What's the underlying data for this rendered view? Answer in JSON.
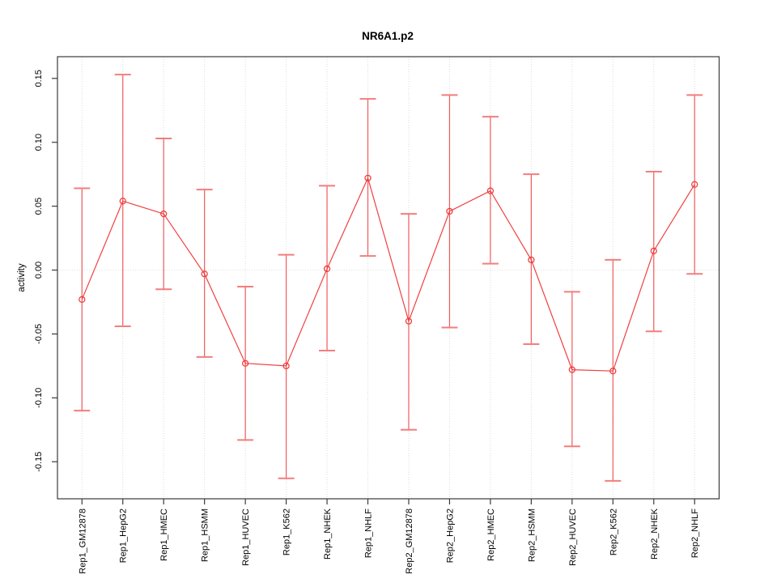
{
  "figure": {
    "background": "#ffffff"
  },
  "chart_data": {
    "type": "scatter",
    "title": "NR6A1.p2",
    "ylabel": "activity",
    "xlabel": "",
    "marker": "open-circle",
    "legend": "none",
    "grid": "vertical dotted line per category; dotted horizontal line at y=0",
    "categories": [
      "Rep1_GM12878",
      "Rep1_HepG2",
      "Rep1_HMEC",
      "Rep1_HSMM",
      "Rep1_HUVEC",
      "Rep1_K562",
      "Rep1_NHEK",
      "Rep1_NHLF",
      "Rep2_GM12878",
      "Rep2_HepG2",
      "Rep2_HMEC",
      "Rep2_HSMM",
      "Rep2_HUVEC",
      "Rep2_K562",
      "Rep2_NHEK",
      "Rep2_NHLF"
    ],
    "series": [
      {
        "name": "activity",
        "values": [
          -0.023,
          0.054,
          0.044,
          -0.003,
          -0.073,
          -0.075,
          0.001,
          0.072,
          -0.04,
          0.046,
          0.062,
          0.008,
          -0.078,
          -0.079,
          0.015,
          0.067
        ],
        "upper": [
          0.064,
          0.153,
          0.103,
          0.063,
          -0.013,
          0.012,
          0.066,
          0.134,
          0.044,
          0.137,
          0.12,
          0.075,
          -0.017,
          0.008,
          0.077,
          0.137
        ],
        "lower": [
          -0.11,
          -0.044,
          -0.015,
          -0.068,
          -0.133,
          -0.163,
          -0.063,
          0.011,
          -0.125,
          -0.045,
          0.005,
          -0.058,
          -0.138,
          -0.165,
          -0.048,
          -0.003
        ]
      }
    ],
    "yticks": [
      -0.15,
      -0.1,
      -0.05,
      0.0,
      0.05,
      0.1,
      0.15
    ],
    "ytick_labels": [
      "-0.15",
      "-0.10",
      "-0.05",
      "0.00",
      "0.05",
      "0.10",
      "0.15"
    ],
    "ylim": [
      -0.179,
      0.167
    ],
    "colors": {
      "series": "#ef4040",
      "cap": "#f47d7d",
      "grid": "#dcdcdc",
      "zero_line": "#e2e2e2",
      "axis": "#3a3a3a",
      "text": "#000000"
    }
  }
}
